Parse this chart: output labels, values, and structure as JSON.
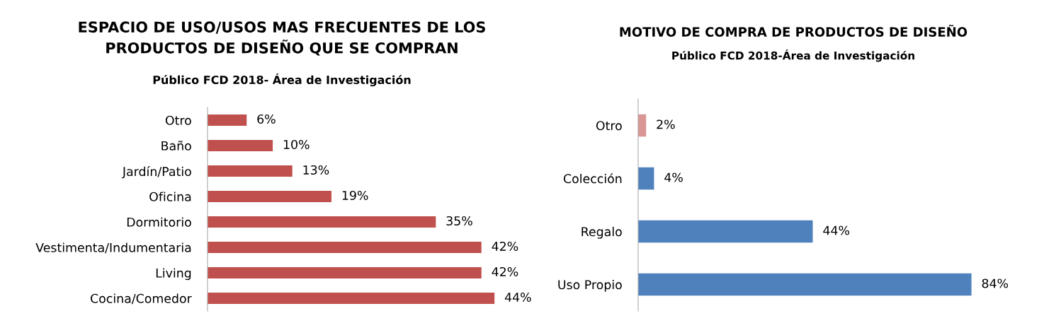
{
  "chart_data": [
    {
      "type": "bar",
      "orientation": "horizontal",
      "title": "ESPACIO DE USO/USOS MAS FRECUENTES DE LOS\nPRODUCTOS DE DISEÑO QUE SE COMPRAN",
      "subtitle": "Público FCD 2018- Área de Investigación",
      "categories": [
        "Otro",
        "Baño",
        "Jardín/Patio",
        "Oficina",
        "Dormitorio",
        "Vestimenta/Indumentaria",
        "Living",
        "Cocina/Comedor"
      ],
      "values": [
        6,
        10,
        13,
        19,
        35,
        42,
        42,
        44
      ],
      "value_labels": [
        "6%",
        "10%",
        "13%",
        "19%",
        "35%",
        "42%",
        "42%",
        "44%"
      ],
      "color": "#c0504d",
      "grid": false,
      "legend": false
    },
    {
      "type": "bar",
      "orientation": "horizontal",
      "title": "MOTIVO DE COMPRA DE PRODUCTOS DE DISEÑO",
      "subtitle": "Público FCD 2018-Área de Investigación",
      "categories": [
        "Otro",
        "Colección",
        "Regalo",
        "Uso Propio"
      ],
      "values": [
        2,
        4,
        44,
        84
      ],
      "value_labels": [
        "2%",
        "4%",
        "44%",
        "84%"
      ],
      "colors": [
        "#d99694",
        "#4f81bd",
        "#4f81bd",
        "#4f81bd"
      ],
      "grid": false,
      "legend": false
    }
  ]
}
